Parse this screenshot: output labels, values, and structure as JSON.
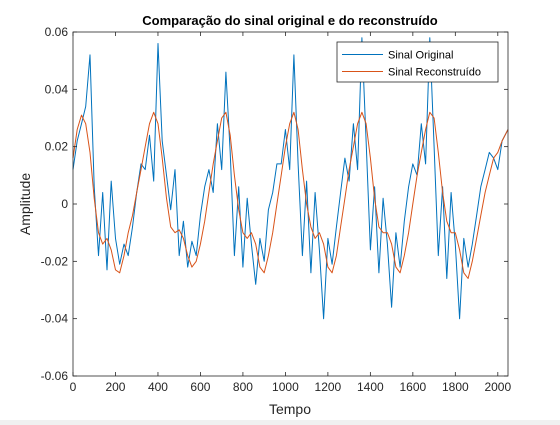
{
  "chart_data": {
    "type": "line",
    "title": "Comparação do sinal original e do reconstruído",
    "xlabel": "Tempo",
    "ylabel": "Amplitude",
    "xlim": [
      0,
      2048
    ],
    "ylim": [
      -0.06,
      0.06
    ],
    "x_ticks": [
      0,
      200,
      400,
      600,
      800,
      1000,
      1200,
      1400,
      1600,
      1800,
      2000
    ],
    "y_ticks": [
      -0.06,
      -0.04,
      -0.02,
      0,
      0.02,
      0.04,
      0.06
    ],
    "y_tick_labels": [
      "-0.06",
      "-0.04",
      "-0.02",
      "0",
      "0.02",
      "0.04",
      "0.06"
    ],
    "grid": false,
    "legend_position": "top-right",
    "series": [
      {
        "name": "Sinal Original",
        "color": "#0072BD",
        "x": [
          0,
          20,
          40,
          60,
          80,
          100,
          120,
          140,
          160,
          180,
          200,
          220,
          240,
          260,
          280,
          300,
          320,
          340,
          360,
          380,
          400,
          420,
          440,
          460,
          480,
          500,
          520,
          540,
          560,
          580,
          600,
          620,
          640,
          660,
          680,
          700,
          720,
          740,
          760,
          780,
          800,
          820,
          840,
          860,
          880,
          900,
          920,
          940,
          960,
          980,
          1000,
          1020,
          1040,
          1060,
          1080,
          1100,
          1120,
          1140,
          1160,
          1180,
          1200,
          1220,
          1240,
          1260,
          1280,
          1300,
          1320,
          1340,
          1360,
          1380,
          1400,
          1420,
          1440,
          1460,
          1480,
          1500,
          1520,
          1540,
          1560,
          1580,
          1600,
          1620,
          1640,
          1660,
          1680,
          1700,
          1720,
          1740,
          1760,
          1780,
          1800,
          1820,
          1840,
          1860,
          1880,
          1900,
          1920,
          1940,
          1960,
          1980,
          2000,
          2020,
          2048
        ],
        "y": [
          0.012,
          0.022,
          0.028,
          0.034,
          0.052,
          0.006,
          -0.018,
          0.004,
          -0.023,
          0.008,
          -0.012,
          -0.021,
          -0.014,
          -0.018,
          -0.008,
          0.004,
          0.014,
          0.012,
          0.024,
          0.008,
          0.056,
          0.022,
          0.01,
          -0.002,
          0.012,
          -0.018,
          -0.006,
          -0.022,
          -0.013,
          -0.018,
          -0.004,
          0.006,
          0.012,
          0.004,
          0.028,
          0.012,
          0.046,
          0.018,
          -0.018,
          0.006,
          -0.022,
          0.002,
          -0.014,
          -0.028,
          -0.012,
          -0.02,
          -0.002,
          0.004,
          0.014,
          0.014,
          0.026,
          0.012,
          0.052,
          0.014,
          -0.018,
          0.008,
          -0.024,
          0.004,
          -0.016,
          -0.04,
          -0.012,
          -0.021,
          -0.008,
          0.004,
          0.016,
          0.008,
          0.028,
          0.012,
          0.058,
          0.022,
          -0.016,
          0.006,
          -0.024,
          0.002,
          -0.014,
          -0.036,
          -0.01,
          -0.022,
          -0.006,
          0.006,
          0.014,
          0.01,
          0.028,
          0.014,
          0.058,
          0.02,
          -0.018,
          0.006,
          -0.026,
          0.004,
          -0.014,
          -0.04,
          -0.012,
          -0.022,
          -0.014,
          -0.004,
          0.006,
          0.012,
          0.018,
          0.016,
          0.012,
          0.022,
          0.026
        ]
      },
      {
        "name": "Sinal Reconstruído",
        "color": "#D95319",
        "x": [
          0,
          20,
          40,
          60,
          80,
          100,
          120,
          140,
          160,
          180,
          200,
          220,
          240,
          260,
          280,
          300,
          320,
          340,
          360,
          380,
          400,
          420,
          440,
          460,
          480,
          500,
          520,
          540,
          560,
          580,
          600,
          620,
          640,
          660,
          680,
          700,
          720,
          740,
          760,
          780,
          800,
          820,
          840,
          860,
          880,
          900,
          920,
          940,
          960,
          980,
          1000,
          1020,
          1040,
          1060,
          1080,
          1100,
          1120,
          1140,
          1160,
          1180,
          1200,
          1220,
          1240,
          1260,
          1280,
          1300,
          1320,
          1340,
          1360,
          1380,
          1400,
          1420,
          1440,
          1460,
          1480,
          1500,
          1520,
          1540,
          1560,
          1580,
          1600,
          1620,
          1640,
          1660,
          1680,
          1700,
          1720,
          1740,
          1760,
          1780,
          1800,
          1820,
          1840,
          1860,
          1880,
          1900,
          1920,
          1940,
          1960,
          1980,
          2000,
          2020,
          2048
        ],
        "y": [
          0.016,
          0.026,
          0.031,
          0.028,
          0.018,
          0.002,
          -0.01,
          -0.014,
          -0.012,
          -0.016,
          -0.023,
          -0.024,
          -0.018,
          -0.01,
          -0.004,
          0.004,
          0.012,
          0.02,
          0.028,
          0.032,
          0.028,
          0.016,
          0.002,
          -0.008,
          -0.01,
          -0.009,
          -0.012,
          -0.018,
          -0.022,
          -0.02,
          -0.014,
          -0.006,
          0.004,
          0.014,
          0.022,
          0.03,
          0.032,
          0.024,
          0.01,
          -0.002,
          -0.01,
          -0.012,
          -0.01,
          -0.014,
          -0.022,
          -0.024,
          -0.018,
          -0.01,
          0.0,
          0.01,
          0.02,
          0.028,
          0.032,
          0.026,
          0.012,
          0.0,
          -0.008,
          -0.012,
          -0.01,
          -0.014,
          -0.022,
          -0.024,
          -0.018,
          -0.008,
          0.002,
          0.012,
          0.02,
          0.028,
          0.032,
          0.028,
          0.016,
          0.002,
          -0.008,
          -0.01,
          -0.01,
          -0.014,
          -0.022,
          -0.024,
          -0.018,
          -0.01,
          0.0,
          0.01,
          0.018,
          0.026,
          0.032,
          0.03,
          0.018,
          0.004,
          -0.006,
          -0.01,
          -0.01,
          -0.016,
          -0.024,
          -0.026,
          -0.02,
          -0.012,
          -0.004,
          0.004,
          0.01,
          0.016,
          0.018,
          0.022,
          0.026
        ]
      }
    ]
  }
}
